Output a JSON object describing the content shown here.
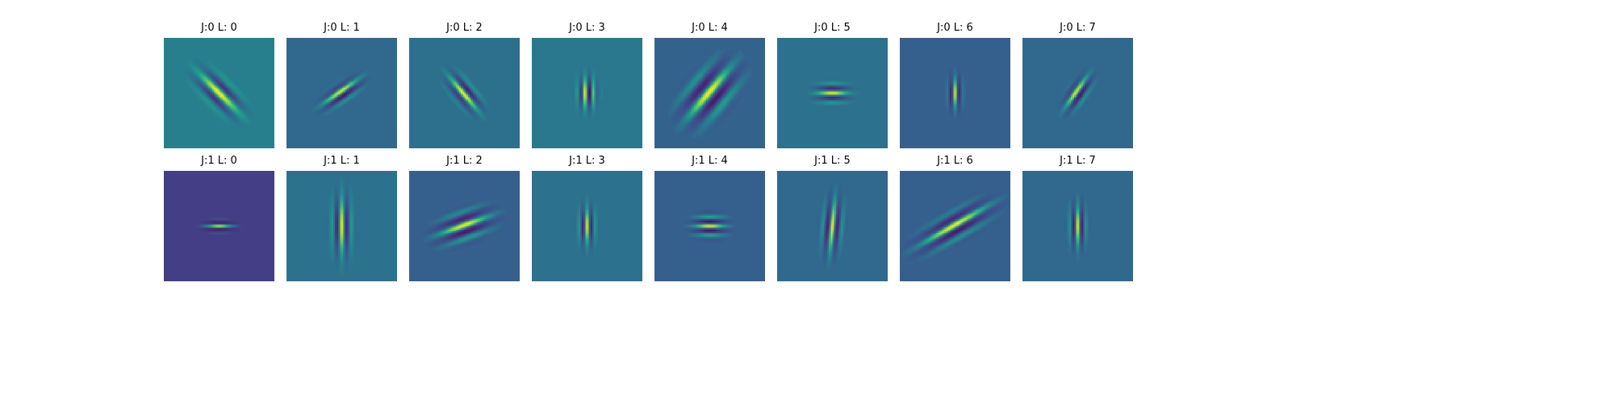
{
  "chart_data": {
    "type": "heatmap",
    "description_grid": "Gabor-like wavelet filter images arranged in 2 rows (J) by 8 columns (L)",
    "colormap": "viridis",
    "grid": false,
    "axes_visible": false,
    "rows": [
      {
        "j": 0,
        "panels": [
          {
            "title": "J:0 L: 0",
            "background": "#277f8e",
            "angle_deg": -45,
            "wavelength": 9,
            "sigma_long": 10,
            "sigma_short": 4.5,
            "phase": 0
          },
          {
            "title": "J:0 L: 1",
            "background": "#31688e",
            "angle_deg": 55,
            "wavelength": 6.5,
            "sigma_long": 8,
            "sigma_short": 3,
            "phase": 1.2
          },
          {
            "title": "J:0 L: 2",
            "background": "#2d708e",
            "angle_deg": -40,
            "wavelength": 7,
            "sigma_long": 8,
            "sigma_short": 3.5,
            "phase": 0.6
          },
          {
            "title": "J:0 L: 3",
            "background": "#2a788e",
            "angle_deg": 0,
            "wavelength": 5,
            "sigma_long": 6,
            "sigma_short": 3.5,
            "phase": 1.5
          },
          {
            "title": "J:0 L: 4",
            "background": "#33638d",
            "angle_deg": 40,
            "wavelength": 11,
            "sigma_long": 12,
            "sigma_short": 7,
            "phase": 0.3
          },
          {
            "title": "J:0 L: 5",
            "background": "#2c718e",
            "angle_deg": 90,
            "wavelength": 6,
            "sigma_long": 6,
            "sigma_short": 3.5,
            "phase": 0
          },
          {
            "title": "J:0 L: 6",
            "background": "#355f8d",
            "angle_deg": 0,
            "wavelength": 5,
            "sigma_long": 6,
            "sigma_short": 2.5,
            "phase": 0
          },
          {
            "title": "J:0 L: 7",
            "background": "#31688e",
            "angle_deg": 35,
            "wavelength": 6.5,
            "sigma_long": 7,
            "sigma_short": 3,
            "phase": 1.2
          }
        ]
      },
      {
        "j": 1,
        "panels": [
          {
            "title": "J:1 L: 0",
            "background": "#433e85",
            "angle_deg": 90,
            "wavelength": 4.5,
            "sigma_long": 5,
            "sigma_short": 2,
            "phase": 0
          },
          {
            "title": "J:1 L: 1",
            "background": "#2c728e",
            "angle_deg": 0,
            "wavelength": 6,
            "sigma_long": 11,
            "sigma_short": 3.5,
            "phase": 0
          },
          {
            "title": "J:1 L: 2",
            "background": "#355f8d",
            "angle_deg": 70,
            "wavelength": 8,
            "sigma_long": 10,
            "sigma_short": 5,
            "phase": 0.4
          },
          {
            "title": "J:1 L: 3",
            "background": "#2c718e",
            "angle_deg": 0,
            "wavelength": 5,
            "sigma_long": 7,
            "sigma_short": 3,
            "phase": 0
          },
          {
            "title": "J:1 L: 4",
            "background": "#355f8d",
            "angle_deg": 90,
            "wavelength": 5.5,
            "sigma_long": 6,
            "sigma_short": 4,
            "phase": 0
          },
          {
            "title": "J:1 L: 5",
            "background": "#31688e",
            "angle_deg": 5,
            "wavelength": 6,
            "sigma_long": 10,
            "sigma_short": 3.5,
            "phase": 0
          },
          {
            "title": "J:1 L: 6",
            "background": "#355f8d",
            "angle_deg": 60,
            "wavelength": 8,
            "sigma_long": 14,
            "sigma_short": 4.5,
            "phase": 0.5
          },
          {
            "title": "J:1 L: 7",
            "background": "#31688e",
            "angle_deg": 0,
            "wavelength": 5,
            "sigma_long": 8,
            "sigma_short": 3,
            "phase": 0
          }
        ]
      }
    ]
  }
}
